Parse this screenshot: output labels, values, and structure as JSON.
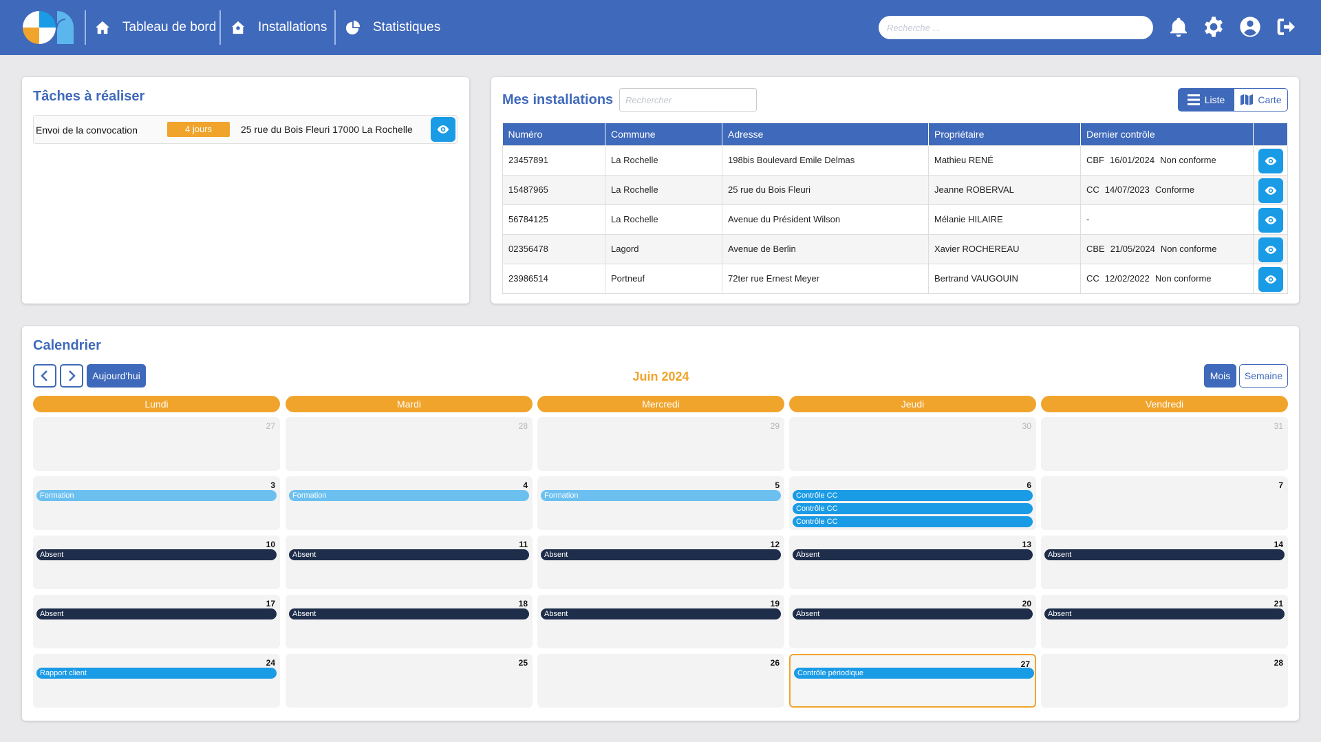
{
  "nav": {
    "items": [
      {
        "label": "Tableau de bord",
        "icon": "home-icon"
      },
      {
        "label": "Installations",
        "icon": "house-gear-icon"
      },
      {
        "label": "Statistiques",
        "icon": "pie-chart-icon"
      }
    ],
    "search_placeholder": "Recherche ...",
    "icons": [
      "bell-icon",
      "gear-icon",
      "user-icon",
      "logout-icon"
    ]
  },
  "tasks": {
    "title": "Tâches à réaliser",
    "items": [
      {
        "name": "Envoi de la convocation",
        "badge": "4 jours",
        "address": "25 rue du Bois Fleuri 17000 La Rochelle"
      }
    ]
  },
  "installations": {
    "title": "Mes installations",
    "search_placeholder": "Rechercher",
    "view_list": "Liste",
    "view_map": "Carte",
    "columns": [
      "Numéro",
      "Commune",
      "Adresse",
      "Propriétaire",
      "Dernier contrôle"
    ],
    "rows": [
      {
        "numero": "23457891",
        "commune": "La Rochelle",
        "adresse": "198bis Boulevard Emile Delmas",
        "proprietaire": "Mathieu RENÉ",
        "type": "CBF",
        "date": "16/01/2024",
        "statut": "Non conforme"
      },
      {
        "numero": "15487965",
        "commune": "La Rochelle",
        "adresse": "25 rue du Bois Fleuri",
        "proprietaire": "Jeanne ROBERVAL",
        "type": "CC",
        "date": "14/07/2023",
        "statut": "Conforme"
      },
      {
        "numero": "56784125",
        "commune": "La Rochelle",
        "adresse": "Avenue du Président Wilson",
        "proprietaire": "Mélanie HILAIRE",
        "type": "-",
        "date": "",
        "statut": ""
      },
      {
        "numero": "02356478",
        "commune": "Lagord",
        "adresse": "Avenue de Berlin",
        "proprietaire": "Xavier ROCHEREAU",
        "type": "CBE",
        "date": "21/05/2024",
        "statut": "Non conforme"
      },
      {
        "numero": "23986514",
        "commune": "Portneuf",
        "adresse": "72ter rue Ernest Meyer",
        "proprietaire": "Bertrand VAUGOUIN",
        "type": "CC",
        "date": "12/02/2022",
        "statut": "Non conforme"
      }
    ]
  },
  "calendar": {
    "title": "Calendrier",
    "today_label": "Aujourd'hui",
    "month_label": "Juin 2024",
    "view_month": "Mois",
    "view_week": "Semaine",
    "days": [
      "Lundi",
      "Mardi",
      "Mercredi",
      "Jeudi",
      "Vendredi"
    ],
    "colors": {
      "formation": "#6cc0f0",
      "controle": "#1a9be6",
      "absent": "#1d2d4a"
    },
    "weeks": [
      [
        {
          "day": "27",
          "other": true,
          "events": []
        },
        {
          "day": "28",
          "other": true,
          "events": []
        },
        {
          "day": "29",
          "other": true,
          "events": []
        },
        {
          "day": "30",
          "other": true,
          "events": []
        },
        {
          "day": "31",
          "other": true,
          "events": []
        }
      ],
      [
        {
          "day": "3",
          "events": [
            {
              "label": "Formation",
              "kind": "formation"
            }
          ]
        },
        {
          "day": "4",
          "events": [
            {
              "label": "Formation",
              "kind": "formation"
            }
          ]
        },
        {
          "day": "5",
          "events": [
            {
              "label": "Formation",
              "kind": "formation"
            }
          ]
        },
        {
          "day": "6",
          "events": [
            {
              "label": "Contrôle CC",
              "kind": "controle"
            },
            {
              "label": "Contrôle CC",
              "kind": "controle"
            },
            {
              "label": "Contrôle CC",
              "kind": "controle"
            }
          ]
        },
        {
          "day": "7",
          "events": []
        }
      ],
      [
        {
          "day": "10",
          "events": [
            {
              "label": "Absent",
              "kind": "absent"
            }
          ]
        },
        {
          "day": "11",
          "events": [
            {
              "label": "Absent",
              "kind": "absent"
            }
          ]
        },
        {
          "day": "12",
          "events": [
            {
              "label": "Absent",
              "kind": "absent"
            }
          ]
        },
        {
          "day": "13",
          "events": [
            {
              "label": "Absent",
              "kind": "absent"
            }
          ]
        },
        {
          "day": "14",
          "events": [
            {
              "label": "Absent",
              "kind": "absent"
            }
          ]
        }
      ],
      [
        {
          "day": "17",
          "events": [
            {
              "label": "Absent",
              "kind": "absent"
            }
          ]
        },
        {
          "day": "18",
          "events": [
            {
              "label": "Absent",
              "kind": "absent"
            }
          ]
        },
        {
          "day": "19",
          "events": [
            {
              "label": "Absent",
              "kind": "absent"
            }
          ]
        },
        {
          "day": "20",
          "events": [
            {
              "label": "Absent",
              "kind": "absent"
            }
          ]
        },
        {
          "day": "21",
          "events": [
            {
              "label": "Absent",
              "kind": "absent"
            }
          ]
        }
      ],
      [
        {
          "day": "24",
          "events": [
            {
              "label": "Rapport client",
              "kind": "controle"
            }
          ]
        },
        {
          "day": "25",
          "events": []
        },
        {
          "day": "26",
          "events": []
        },
        {
          "day": "27",
          "today": true,
          "events": [
            {
              "label": "Contrôle périodique",
              "kind": "controle"
            }
          ]
        },
        {
          "day": "28",
          "events": []
        }
      ]
    ]
  }
}
